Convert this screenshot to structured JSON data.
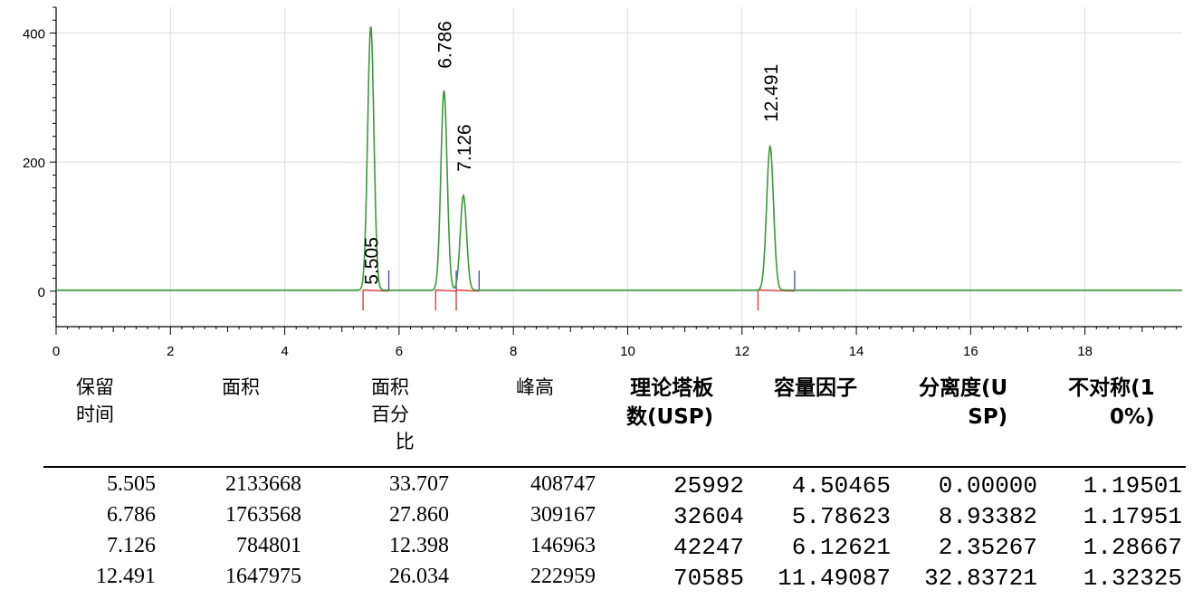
{
  "chart_data": {
    "type": "line",
    "xlim": [
      0,
      19.7
    ],
    "ylim": [
      -55,
      440
    ],
    "x_ticks": [
      0,
      2,
      4,
      6,
      8,
      10,
      12,
      14,
      16,
      18
    ],
    "y_ticks": [
      0,
      200,
      400
    ],
    "grid": true,
    "trace_color": "#3a9a3a",
    "baseline_color": "#e03030",
    "marker_color": "#4040c8",
    "peaks": [
      {
        "label": "5.505",
        "rt": 5.505,
        "height": 408.7,
        "width": 0.055
      },
      {
        "label": "6.786",
        "rt": 6.786,
        "height": 309.2,
        "width": 0.055
      },
      {
        "label": "7.126",
        "rt": 7.126,
        "height": 147.0,
        "width": 0.055
      },
      {
        "label": "12.491",
        "rt": 12.491,
        "height": 223.0,
        "width": 0.06
      }
    ]
  },
  "table": {
    "headers": [
      "保留\n时间",
      "面积",
      "面积\n百分\n    比",
      "峰高",
      "理论塔板\n数(USP)",
      "容量因子",
      "分离度(U\n     SP)",
      "不对称(1\n      0%)"
    ],
    "rows": [
      [
        "5.505",
        "2133668",
        "33.707",
        "408747",
        "25992",
        "4.50465",
        "0.00000",
        "1.19501"
      ],
      [
        "6.786",
        "1763568",
        "27.860",
        "309167",
        "32604",
        "5.78623",
        "8.93382",
        "1.17951"
      ],
      [
        "7.126",
        "784801",
        "12.398",
        "146963",
        "42247",
        "6.12621",
        "2.35267",
        "1.28667"
      ],
      [
        "12.491",
        "1647975",
        "26.034",
        "222959",
        "70585",
        "11.49087",
        "32.83721",
        "1.32325"
      ]
    ]
  }
}
